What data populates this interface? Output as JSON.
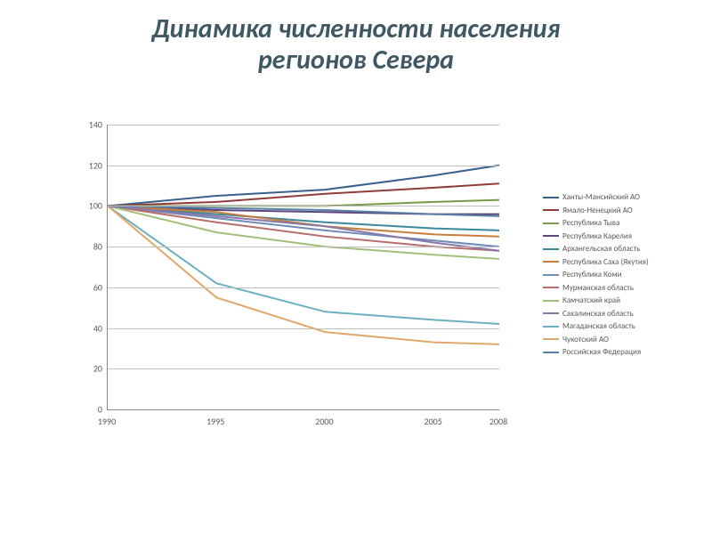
{
  "title_line1": "Динамика численности населения",
  "title_line2": "регионов Севера",
  "title_color": "#3f5864",
  "background_color": "#ffffff",
  "chart": {
    "type": "line",
    "x": [
      1990,
      1995,
      2000,
      2005,
      2008
    ],
    "xlim": [
      1990,
      2008
    ],
    "ylim": [
      0,
      140
    ],
    "ytick_step": 20,
    "grid_color": "#bfbfbf",
    "axis_color": "#888888",
    "label_fontsize": 10,
    "label_color": "#595959",
    "line_width": 2,
    "series": [
      {
        "name": "Ханты-Мансийский АО",
        "color": "#3a608d",
        "values": [
          100,
          105,
          108,
          115,
          120
        ]
      },
      {
        "name": "Ямало-Ненецкий АО",
        "color": "#903d3a",
        "values": [
          100,
          102,
          106,
          109,
          111
        ]
      },
      {
        "name": "Республика Тыва",
        "color": "#789a4a",
        "values": [
          100,
          100,
          100,
          102,
          103
        ]
      },
      {
        "name": "Республика Карелия",
        "color": "#5d467a",
        "values": [
          100,
          98,
          97,
          96,
          96
        ]
      },
      {
        "name": "Архангельская область",
        "color": "#3a8a9c",
        "values": [
          100,
          96,
          92,
          89,
          88
        ]
      },
      {
        "name": "Республика Саха (Якутия)",
        "color": "#c87f3e",
        "values": [
          100,
          97,
          90,
          86,
          85
        ]
      },
      {
        "name": "Республика Коми",
        "color": "#6f8bb8",
        "values": [
          100,
          94,
          88,
          83,
          80
        ]
      },
      {
        "name": "Мурманская область",
        "color": "#b86f6c",
        "values": [
          100,
          92,
          85,
          80,
          78
        ]
      },
      {
        "name": "Камчатский край",
        "color": "#a3bf7a",
        "values": [
          100,
          87,
          80,
          76,
          74
        ]
      },
      {
        "name": "Сахалинская область",
        "color": "#8a76a8",
        "values": [
          100,
          95,
          90,
          82,
          78
        ]
      },
      {
        "name": "Магаданская область",
        "color": "#6bb0bf",
        "values": [
          100,
          62,
          48,
          44,
          42
        ]
      },
      {
        "name": "Чукотский АО",
        "color": "#e0a96d",
        "values": [
          100,
          55,
          38,
          33,
          32
        ]
      },
      {
        "name": "Российская Федерация",
        "color": "#5a7fa9",
        "values": [
          100,
          99,
          98,
          96,
          95
        ]
      }
    ]
  }
}
